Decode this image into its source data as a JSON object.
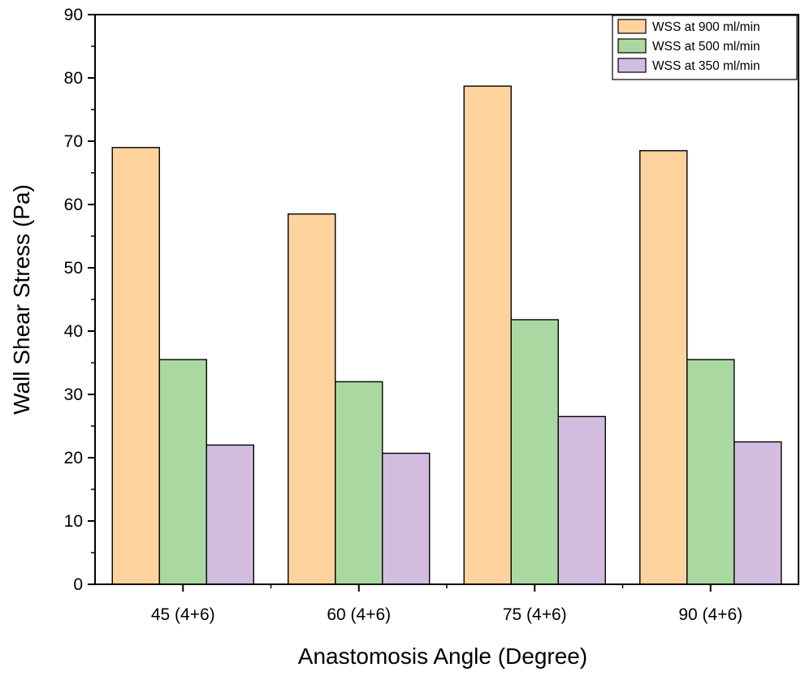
{
  "chart_data": {
    "type": "bar",
    "title": "",
    "xlabel": "Anastomosis Angle (Degree)",
    "ylabel": "Wall Shear Stress (Pa)",
    "ylim": [
      0,
      90
    ],
    "yticks": [
      0,
      10,
      20,
      30,
      40,
      50,
      60,
      70,
      80,
      90
    ],
    "categories": [
      "45 (4+6)",
      "60 (4+6)",
      "75 (4+6)",
      "90 (4+6)"
    ],
    "series": [
      {
        "name": "WSS at 900 ml/min",
        "color": "#ffd39e",
        "values": [
          69.0,
          58.5,
          78.7,
          68.5
        ]
      },
      {
        "name": "WSS at 500 ml/min",
        "color": "#a9d9a1",
        "values": [
          35.5,
          32.0,
          41.8,
          35.5
        ]
      },
      {
        "name": "WSS at 350 ml/min",
        "color": "#d2bde0",
        "values": [
          22.0,
          20.7,
          26.5,
          22.5
        ]
      }
    ],
    "legend_position": "top-right",
    "grid": false
  }
}
